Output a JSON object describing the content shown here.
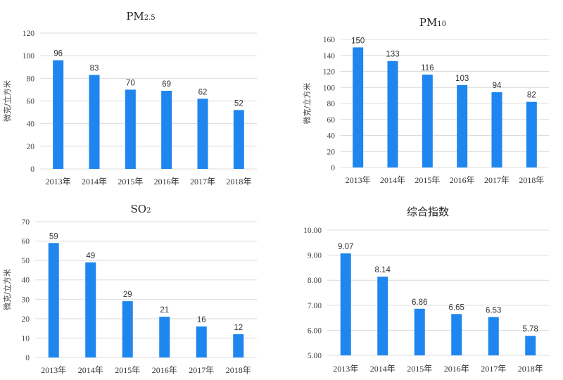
{
  "chart_data": [
    {
      "type": "bar",
      "title": "PM2.5",
      "title_main": "PM",
      "title_sub": "2.5",
      "categories": [
        "2013年",
        "2014年",
        "2015年",
        "2016年",
        "2017年",
        "2018年"
      ],
      "values": [
        96,
        83,
        70,
        69,
        62,
        52
      ],
      "value_labels": [
        "96",
        "83",
        "70",
        "69",
        "62",
        "52"
      ],
      "ylabel": "微克/立方米",
      "ylim": [
        0,
        120
      ],
      "yticks": [
        "0",
        "20",
        "40",
        "60",
        "80",
        "100",
        "120"
      ],
      "grid": true,
      "bar_color": "#1e86ee"
    },
    {
      "type": "bar",
      "title": "PM10",
      "title_main": "PM",
      "title_sub": "10",
      "categories": [
        "2013年",
        "2014年",
        "2015年",
        "2016年",
        "2017年",
        "2018年"
      ],
      "values": [
        150,
        133,
        116,
        103,
        94,
        82
      ],
      "value_labels": [
        "150",
        "133",
        "116",
        "103",
        "94",
        "82"
      ],
      "ylabel": "微克/立方米",
      "ylim": [
        0,
        160
      ],
      "yticks": [
        "0",
        "20",
        "40",
        "60",
        "80",
        "100",
        "120",
        "140",
        "160"
      ],
      "grid": true,
      "bar_color": "#1e86ee"
    },
    {
      "type": "bar",
      "title": "SO2",
      "title_main": "SO",
      "title_sub": "2",
      "categories": [
        "2013年",
        "2014年",
        "2015年",
        "2016年",
        "2017年",
        "2018年"
      ],
      "values": [
        59,
        49,
        29,
        21,
        16,
        12
      ],
      "value_labels": [
        "59",
        "49",
        "29",
        "21",
        "16",
        "12"
      ],
      "ylabel": "微克/立方米",
      "ylim": [
        0,
        70
      ],
      "yticks": [
        "0",
        "10",
        "20",
        "30",
        "40",
        "50",
        "60",
        "70"
      ],
      "grid": true,
      "bar_color": "#1e86ee"
    },
    {
      "type": "bar",
      "title": "综合指数",
      "title_main": "综合指数",
      "title_sub": "",
      "categories": [
        "2013年",
        "2014年",
        "2015年",
        "2016年",
        "2017年",
        "2018年"
      ],
      "values": [
        9.07,
        8.14,
        6.86,
        6.65,
        6.53,
        5.78
      ],
      "value_labels": [
        "9.07",
        "8.14",
        "6.86",
        "6.65",
        "6.53",
        "5.78"
      ],
      "ylabel": "",
      "ylim": [
        5.0,
        10.0
      ],
      "yticks": [
        "5.00",
        "6.00",
        "7.00",
        "8.00",
        "9.00",
        "10.00"
      ],
      "grid": true,
      "bar_color": "#1e86ee"
    }
  ]
}
